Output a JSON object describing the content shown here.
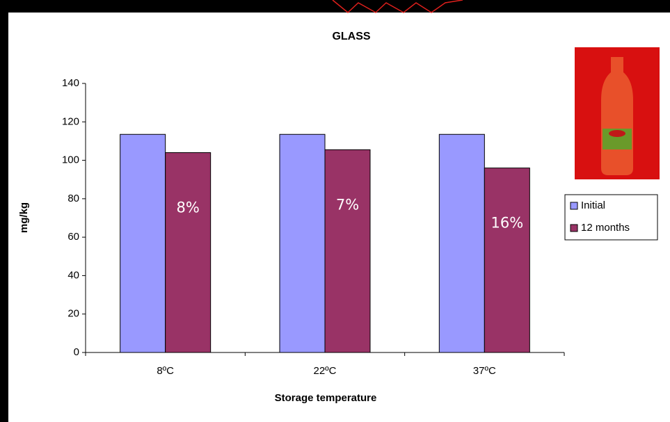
{
  "chart_data": {
    "type": "bar",
    "title": "GLASS",
    "x_label": "Storage temperature",
    "y_label": "mg/kg",
    "categories": [
      "8ºC",
      "22ºC",
      "37ºC"
    ],
    "series": [
      {
        "name": "Initial",
        "color": "#9999ff",
        "values": [
          113.5,
          113.5,
          113.5
        ]
      },
      {
        "name": "12 months",
        "color": "#993366",
        "values": [
          104,
          105.5,
          96
        ]
      }
    ],
    "annotations": [
      "8%",
      "7%",
      "16%"
    ],
    "ylim": [
      0,
      140
    ],
    "yticks": [
      0,
      20,
      40,
      60,
      80,
      100,
      120,
      140
    ],
    "legend": "right"
  }
}
